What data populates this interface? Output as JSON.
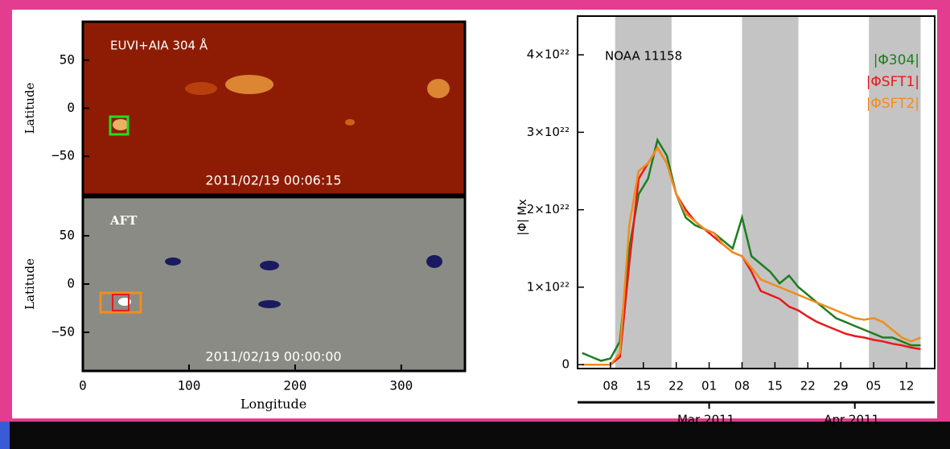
{
  "chart_data": [
    {
      "type": "map",
      "title": "EUVI+AIA 304 Å",
      "timestamp": "2011/02/19 00:06:15",
      "ylabel": "Latitude",
      "xlim": [
        0,
        360
      ],
      "ylim": [
        -90,
        90
      ],
      "yticks": [
        {
          "value": -50,
          "label": "−50"
        },
        0,
        50
      ],
      "color": "#8e1c04"
    },
    {
      "type": "map",
      "title": "AFT",
      "timestamp": "2011/02/19 00:00:00",
      "ylabel": "Latitude",
      "xlabel": "Longitude",
      "xlim": [
        0,
        360
      ],
      "ylim": [
        -90,
        90
      ],
      "yticks": [
        {
          "value": -50,
          "label": "−50"
        },
        0,
        50
      ],
      "xticks": [
        0,
        100,
        200,
        300
      ],
      "color": "#8a8b84"
    },
    {
      "type": "line",
      "annotation": "NOAA 11158",
      "ylabel": "|Φ| Mx",
      "x": [
        "2011-02-02",
        "2011-02-04",
        "2011-02-06",
        "2011-02-08",
        "2011-02-10",
        "2011-02-12",
        "2011-02-14",
        "2011-02-16",
        "2011-02-18",
        "2011-02-20",
        "2011-02-22",
        "2011-02-24",
        "2011-02-26",
        "2011-02-28",
        "2011-03-02",
        "2011-03-04",
        "2011-03-06",
        "2011-03-08",
        "2011-03-10",
        "2011-03-12",
        "2011-03-14",
        "2011-03-16",
        "2011-03-18",
        "2011-03-20",
        "2011-03-22",
        "2011-03-24",
        "2011-03-26",
        "2011-03-28",
        "2011-03-30",
        "2011-04-01",
        "2011-04-03",
        "2011-04-05",
        "2011-04-07",
        "2011-04-09",
        "2011-04-11",
        "2011-04-13",
        "2011-04-15"
      ],
      "xlim": [
        "2011-02-01",
        "2011-04-18"
      ],
      "xticks": [
        {
          "value": "2011-02-08",
          "label": "08"
        },
        {
          "value": "2011-02-15",
          "label": "15"
        },
        {
          "value": "2011-02-22",
          "label": "22"
        },
        {
          "value": "2011-03-01",
          "label": "01"
        },
        {
          "value": "2011-03-08",
          "label": "08"
        },
        {
          "value": "2011-03-15",
          "label": "15"
        },
        {
          "value": "2011-03-22",
          "label": "22"
        },
        {
          "value": "2011-03-29",
          "label": "29"
        },
        {
          "value": "2011-04-05",
          "label": "05"
        },
        {
          "value": "2011-04-12",
          "label": "12"
        }
      ],
      "months": [
        {
          "value": "2011-03-01",
          "label": "Mar 2011"
        },
        {
          "value": "2011-04-01",
          "label": "Apr 2011"
        }
      ],
      "shaded": [
        [
          "2011-02-09",
          "2011-02-21"
        ],
        [
          "2011-03-08",
          "2011-03-20"
        ],
        [
          "2011-04-04",
          "2011-04-15"
        ]
      ],
      "ylim": [
        -5e+20,
        4.5e+22
      ],
      "yticks": [
        0,
        {
          "value": 1e+22,
          "label": "1×10²²"
        },
        {
          "value": 2e+22,
          "label": "2×10²²"
        },
        {
          "value": 3e+22,
          "label": "3×10²²"
        },
        {
          "value": 4e+22,
          "label": "4×10²²"
        }
      ],
      "series": [
        {
          "name": "|Φ304|",
          "color": "#1e7d1e",
          "values": [
            1.5e+21,
            1e+21,
            5e+20,
            8e+20,
            3e+21,
            1.5e+22,
            2.2e+22,
            2.4e+22,
            2.9e+22,
            2.7e+22,
            2.2e+22,
            1.9e+22,
            1.8e+22,
            1.75e+22,
            1.7e+22,
            1.6e+22,
            1.5e+22,
            1.9e+22,
            1.4e+22,
            1.3e+22,
            1.2e+22,
            1.05e+22,
            1.15e+22,
            1e+22,
            9e+21,
            8e+21,
            7e+21,
            6e+21,
            5.5e+21,
            5e+21,
            4.5e+21,
            4e+21,
            3.5e+21,
            3.5e+21,
            3e+21,
            2.5e+21,
            2.5e+21
          ]
        },
        {
          "name": "|ΦSFT1|",
          "color": "#e8191b",
          "values": [
            0,
            0,
            0,
            0,
            1e+21,
            1.3e+22,
            2.4e+22,
            2.6e+22,
            2.8e+22,
            2.6e+22,
            2.2e+22,
            2e+22,
            1.85e+22,
            1.75e+22,
            1.65e+22,
            1.55e+22,
            1.45e+22,
            1.4e+22,
            1.2e+22,
            9.5e+21,
            9e+21,
            8.5e+21,
            7.5e+21,
            7e+21,
            6.2e+21,
            5.5e+21,
            5e+21,
            4.5e+21,
            4e+21,
            3.7e+21,
            3.5e+21,
            3.2e+21,
            3e+21,
            2.7e+21,
            2.5e+21,
            2.2e+21,
            2e+21
          ]
        },
        {
          "name": "|ΦSFT2|",
          "color": "#f28c1c",
          "values": [
            0,
            0,
            0,
            0,
            1.5e+21,
            1.8e+22,
            2.5e+22,
            2.6e+22,
            2.8e+22,
            2.6e+22,
            2.2e+22,
            1.95e+22,
            1.85e+22,
            1.75e+22,
            1.7e+22,
            1.55e+22,
            1.45e+22,
            1.4e+22,
            1.25e+22,
            1.1e+22,
            1.05e+22,
            1e+22,
            9.5e+21,
            9e+21,
            8.5e+21,
            8e+21,
            7.5e+21,
            7e+21,
            6.5e+21,
            6e+21,
            5.8e+21,
            6e+21,
            5.5e+21,
            4.5e+21,
            3.5e+21,
            3e+21,
            3.5e+21
          ]
        }
      ]
    }
  ]
}
